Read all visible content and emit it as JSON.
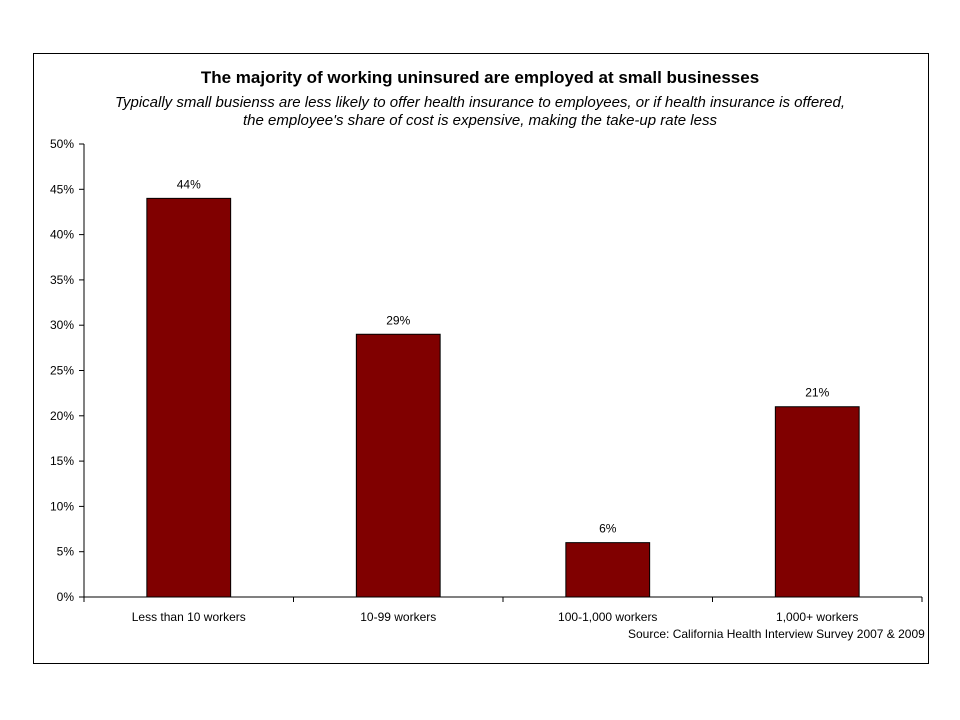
{
  "colors": {
    "bar": "#800000",
    "axis": "#000000",
    "background": "#ffffff"
  },
  "chart_data": {
    "type": "bar",
    "title": "The majority of working uninsured are employed at small businesses",
    "subtitle": "Typically small busienss are less likely to offer health insurance to employees, or if health insurance is offered, the employee's share of cost is expensive, making the take-up rate less",
    "categories": [
      "Less than 10 workers",
      "10-99 workers",
      "100-1,000 workers",
      "1,000+ workers"
    ],
    "values": [
      44,
      29,
      6,
      21
    ],
    "data_labels": [
      "44%",
      "29%",
      "6%",
      "21%"
    ],
    "ylim": [
      0,
      50
    ],
    "yticks": [
      0,
      5,
      10,
      15,
      20,
      25,
      30,
      35,
      40,
      45,
      50
    ],
    "ytick_labels": [
      "0%",
      "5%",
      "10%",
      "15%",
      "20%",
      "25%",
      "30%",
      "35%",
      "40%",
      "45%",
      "50%"
    ],
    "grid": false,
    "legend": "none",
    "source": "Source: California Health Interview Survey 2007 & 2009"
  }
}
